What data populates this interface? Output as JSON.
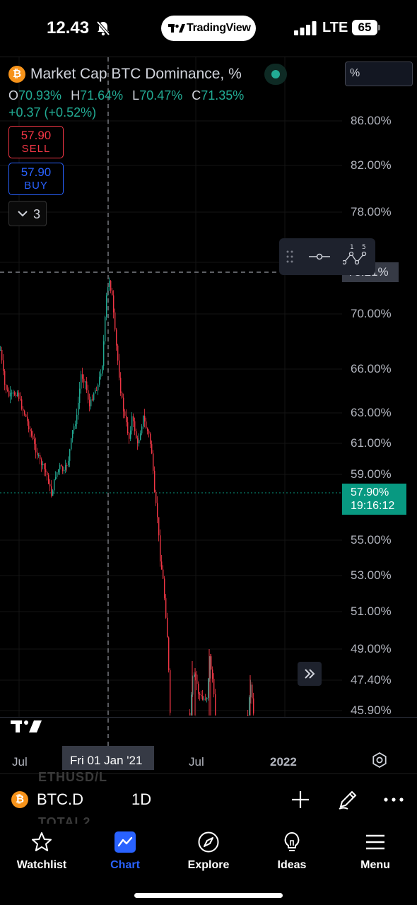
{
  "status_bar": {
    "time": "12.43",
    "network": "LTE",
    "battery": "65"
  },
  "header_pill": {
    "brand": "TradingView"
  },
  "legend": {
    "title": "Market Cap BTC Dominance, %",
    "open_key": "O",
    "open": "70.93%",
    "high_key": "H",
    "high": "71.64%",
    "low_key": "L",
    "low": "70.47%",
    "close_key": "C",
    "close": "71.35%",
    "change": "+0.37 (+0.52%)"
  },
  "trade": {
    "sell_price": "57.90",
    "sell_label": "SELL",
    "buy_price": "57.90",
    "buy_label": "BUY"
  },
  "indicators_count": "3",
  "scale_mode": "%",
  "price_axis": [
    "86.00%",
    "82.00%",
    "78.00%",
    "70.00%",
    "66.00%",
    "63.00%",
    "61.00%",
    "59.00%",
    "55.00%",
    "53.00%",
    "51.00%",
    "49.00%",
    "47.40%",
    "45.90%"
  ],
  "crosshair_price": "73.21%",
  "current_price": {
    "value": "57.90%",
    "countdown": "19:16:12"
  },
  "time_axis": {
    "jul1": "Jul",
    "jul2": "Jul",
    "year": "2022"
  },
  "crosshair_date": "Fri 01 Jan '21",
  "symbol_bar": {
    "symbol": "BTC.D",
    "interval": "1D",
    "ghost_top": "ETHUSD/L",
    "ghost_bottom": "TOTAL2"
  },
  "tabs": [
    {
      "label": "Watchlist",
      "icon": "star-icon"
    },
    {
      "label": "Chart",
      "icon": "chart-icon"
    },
    {
      "label": "Explore",
      "icon": "compass-icon"
    },
    {
      "label": "Ideas",
      "icon": "lightbulb-icon"
    },
    {
      "label": "Menu",
      "icon": "hamburger-icon"
    }
  ],
  "colors": {
    "up": "#22ab94",
    "down": "#f23645",
    "accent": "#2962ff",
    "btc": "#f7931a"
  }
}
